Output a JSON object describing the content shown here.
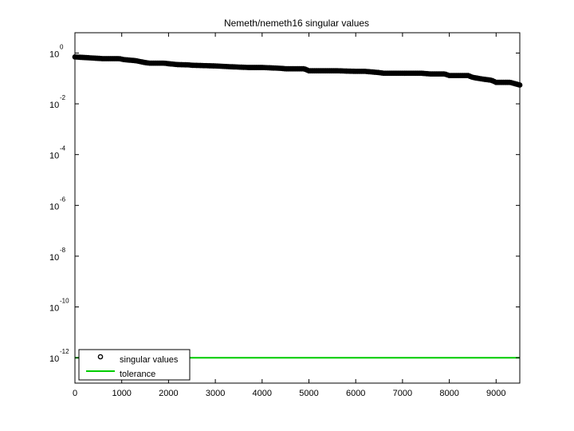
{
  "chart_data": {
    "type": "scatter",
    "title": "Nemeth/nemeth16 singular values",
    "xlabel": "",
    "ylabel": "",
    "xscale": "linear",
    "yscale": "log",
    "xlim": [
      0,
      9506
    ],
    "ylim_log10": [
      -13,
      0.8
    ],
    "xticks": [
      0,
      1000,
      2000,
      3000,
      4000,
      5000,
      6000,
      7000,
      8000,
      9000
    ],
    "yticks": [
      {
        "base": "10",
        "exp": "0",
        "log10": 0
      },
      {
        "base": "10",
        "exp": "-2",
        "log10": -2
      },
      {
        "base": "10",
        "exp": "-4",
        "log10": -4
      },
      {
        "base": "10",
        "exp": "-6",
        "log10": -6
      },
      {
        "base": "10",
        "exp": "-8",
        "log10": -8
      },
      {
        "base": "10",
        "exp": "-10",
        "log10": -10
      },
      {
        "base": "10",
        "exp": "-12",
        "log10": -12
      }
    ],
    "grid": false,
    "legend_position": "bottom-left",
    "series": [
      {
        "name": "singular values",
        "marker": "circle",
        "color": "#000000",
        "x": [
          0,
          300,
          600,
          950,
          1050,
          1300,
          1500,
          1600,
          1900,
          2000,
          2200,
          2450,
          2500,
          3000,
          3300,
          3700,
          4000,
          4400,
          4500,
          4900,
          5000,
          5600,
          6000,
          6200,
          6500,
          6600,
          7000,
          7400,
          7600,
          7900,
          8000,
          8400,
          8500,
          8700,
          8900,
          9000,
          9300,
          9506
        ],
        "y": [
          0.7,
          0.65,
          0.6,
          0.6,
          0.55,
          0.5,
          0.42,
          0.4,
          0.4,
          0.38,
          0.35,
          0.34,
          0.33,
          0.31,
          0.29,
          0.27,
          0.27,
          0.25,
          0.24,
          0.24,
          0.2,
          0.2,
          0.19,
          0.19,
          0.17,
          0.16,
          0.16,
          0.16,
          0.15,
          0.15,
          0.13,
          0.13,
          0.11,
          0.095,
          0.085,
          0.07,
          0.07,
          0.055
        ]
      },
      {
        "name": "tolerance",
        "type": "line",
        "color": "#00cc00",
        "x": [
          0,
          9506
        ],
        "y": [
          1e-12,
          1e-12
        ]
      }
    ]
  }
}
